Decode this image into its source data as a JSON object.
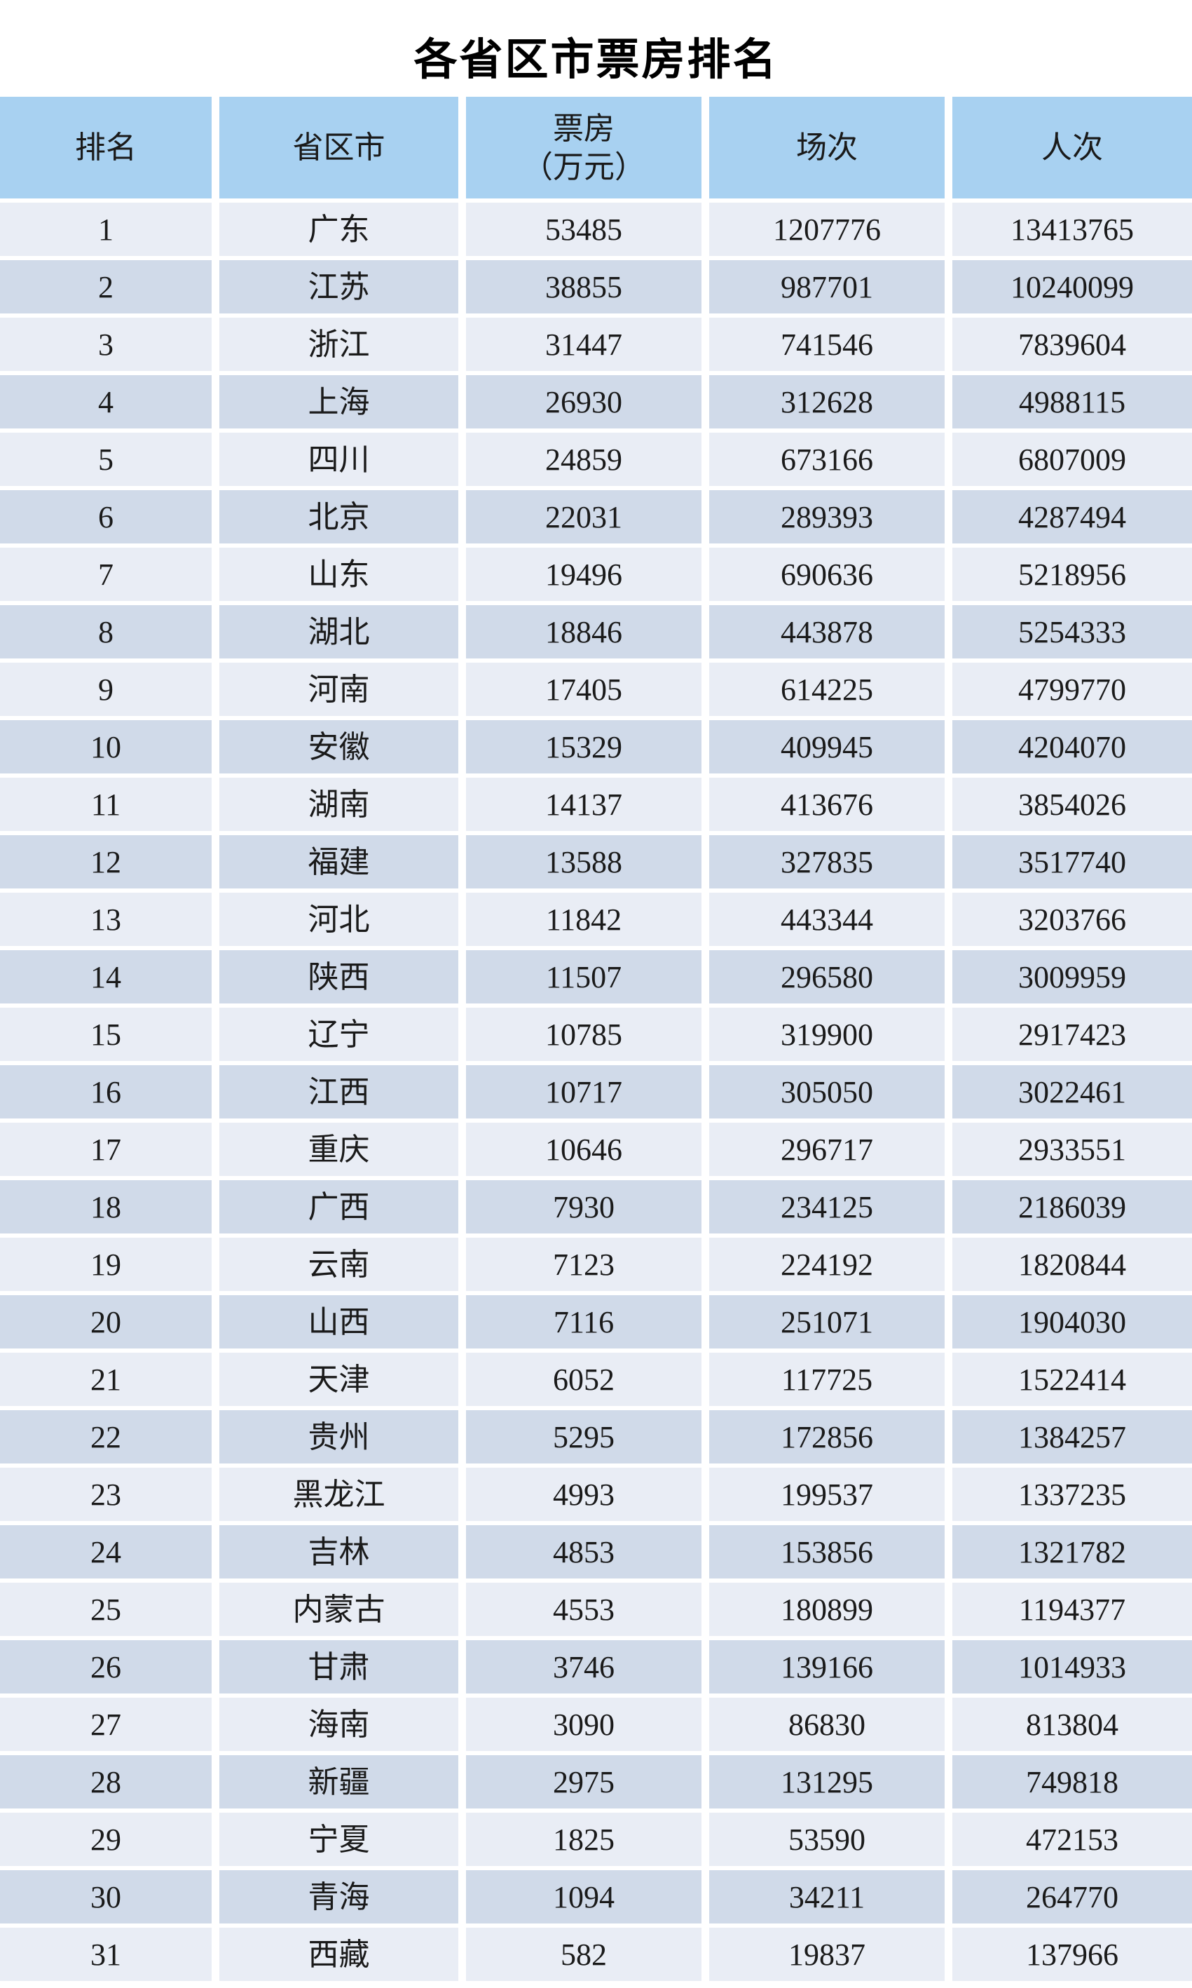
{
  "title": "各省区市票房排名",
  "colors": {
    "header_bg": "#A8D1F1",
    "row_light_bg": "#E9EDF5",
    "row_dark_bg": "#D0DAE9",
    "gutter": "#FFFFFF",
    "text": "#1A1A1A"
  },
  "table": {
    "headers": [
      "排名",
      "省区市",
      "票房\n（万元）",
      "场次",
      "人次"
    ],
    "column_keys": [
      "rank",
      "province",
      "box_office_wan",
      "sessions",
      "admissions"
    ],
    "rows": [
      {
        "rank": "1",
        "province": "广东",
        "box_office_wan": "53485",
        "sessions": "1207776",
        "admissions": "13413765"
      },
      {
        "rank": "2",
        "province": "江苏",
        "box_office_wan": "38855",
        "sessions": "987701",
        "admissions": "10240099"
      },
      {
        "rank": "3",
        "province": "浙江",
        "box_office_wan": "31447",
        "sessions": "741546",
        "admissions": "7839604"
      },
      {
        "rank": "4",
        "province": "上海",
        "box_office_wan": "26930",
        "sessions": "312628",
        "admissions": "4988115"
      },
      {
        "rank": "5",
        "province": "四川",
        "box_office_wan": "24859",
        "sessions": "673166",
        "admissions": "6807009"
      },
      {
        "rank": "6",
        "province": "北京",
        "box_office_wan": "22031",
        "sessions": "289393",
        "admissions": "4287494"
      },
      {
        "rank": "7",
        "province": "山东",
        "box_office_wan": "19496",
        "sessions": "690636",
        "admissions": "5218956"
      },
      {
        "rank": "8",
        "province": "湖北",
        "box_office_wan": "18846",
        "sessions": "443878",
        "admissions": "5254333"
      },
      {
        "rank": "9",
        "province": "河南",
        "box_office_wan": "17405",
        "sessions": "614225",
        "admissions": "4799770"
      },
      {
        "rank": "10",
        "province": "安徽",
        "box_office_wan": "15329",
        "sessions": "409945",
        "admissions": "4204070"
      },
      {
        "rank": "11",
        "province": "湖南",
        "box_office_wan": "14137",
        "sessions": "413676",
        "admissions": "3854026"
      },
      {
        "rank": "12",
        "province": "福建",
        "box_office_wan": "13588",
        "sessions": "327835",
        "admissions": "3517740"
      },
      {
        "rank": "13",
        "province": "河北",
        "box_office_wan": "11842",
        "sessions": "443344",
        "admissions": "3203766"
      },
      {
        "rank": "14",
        "province": "陕西",
        "box_office_wan": "11507",
        "sessions": "296580",
        "admissions": "3009959"
      },
      {
        "rank": "15",
        "province": "辽宁",
        "box_office_wan": "10785",
        "sessions": "319900",
        "admissions": "2917423"
      },
      {
        "rank": "16",
        "province": "江西",
        "box_office_wan": "10717",
        "sessions": "305050",
        "admissions": "3022461"
      },
      {
        "rank": "17",
        "province": "重庆",
        "box_office_wan": "10646",
        "sessions": "296717",
        "admissions": "2933551"
      },
      {
        "rank": "18",
        "province": "广西",
        "box_office_wan": "7930",
        "sessions": "234125",
        "admissions": "2186039"
      },
      {
        "rank": "19",
        "province": "云南",
        "box_office_wan": "7123",
        "sessions": "224192",
        "admissions": "1820844"
      },
      {
        "rank": "20",
        "province": "山西",
        "box_office_wan": "7116",
        "sessions": "251071",
        "admissions": "1904030"
      },
      {
        "rank": "21",
        "province": "天津",
        "box_office_wan": "6052",
        "sessions": "117725",
        "admissions": "1522414"
      },
      {
        "rank": "22",
        "province": "贵州",
        "box_office_wan": "5295",
        "sessions": "172856",
        "admissions": "1384257"
      },
      {
        "rank": "23",
        "province": "黑龙江",
        "box_office_wan": "4993",
        "sessions": "199537",
        "admissions": "1337235"
      },
      {
        "rank": "24",
        "province": "吉林",
        "box_office_wan": "4853",
        "sessions": "153856",
        "admissions": "1321782"
      },
      {
        "rank": "25",
        "province": "内蒙古",
        "box_office_wan": "4553",
        "sessions": "180899",
        "admissions": "1194377"
      },
      {
        "rank": "26",
        "province": "甘肃",
        "box_office_wan": "3746",
        "sessions": "139166",
        "admissions": "1014933"
      },
      {
        "rank": "27",
        "province": "海南",
        "box_office_wan": "3090",
        "sessions": "86830",
        "admissions": "813804"
      },
      {
        "rank": "28",
        "province": "新疆",
        "box_office_wan": "2975",
        "sessions": "131295",
        "admissions": "749818"
      },
      {
        "rank": "29",
        "province": "宁夏",
        "box_office_wan": "1825",
        "sessions": "53590",
        "admissions": "472153"
      },
      {
        "rank": "30",
        "province": "青海",
        "box_office_wan": "1094",
        "sessions": "34211",
        "admissions": "264770"
      },
      {
        "rank": "31",
        "province": "西藏",
        "box_office_wan": "582",
        "sessions": "19837",
        "admissions": "137966"
      }
    ]
  }
}
